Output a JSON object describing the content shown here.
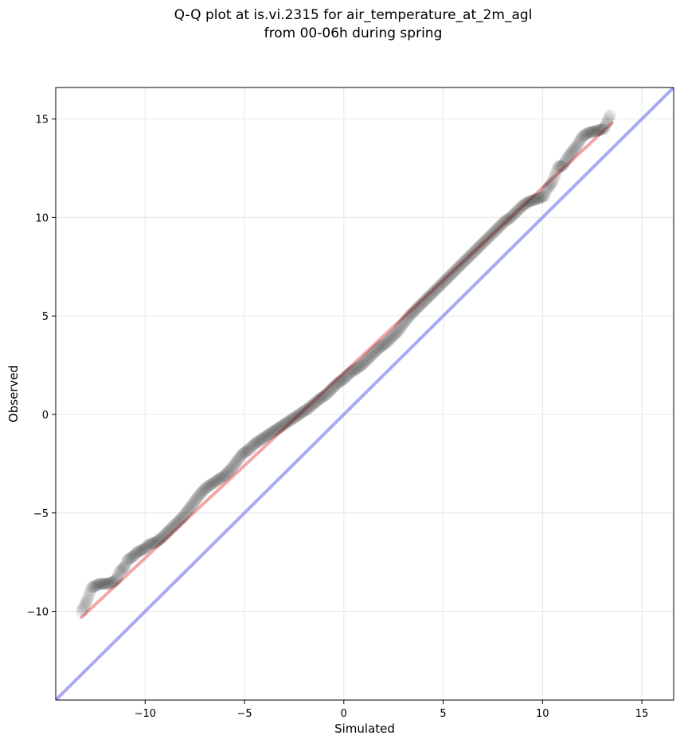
{
  "chart_data": {
    "type": "scatter",
    "title_lines": [
      "Q-Q plot at is.vi.2315 for air_temperature_at_2m_agl",
      "from 00-06h during spring"
    ],
    "xlabel": "Simulated",
    "ylabel": "Observed",
    "xlim": [
      -14.5,
      16.6
    ],
    "ylim": [
      -14.5,
      16.6
    ],
    "xticks": [
      -10,
      -5,
      0,
      5,
      10,
      15
    ],
    "yticks": [
      -10,
      -5,
      0,
      5,
      10,
      15
    ],
    "xtick_labels": [
      "−10",
      "−5",
      "0",
      "5",
      "10",
      "15"
    ],
    "ytick_labels": [
      "−10",
      "−5",
      "0",
      "5",
      "10",
      "15"
    ],
    "grid": true,
    "colors": {
      "points": "#1a1a1a",
      "fit_line": "#f08080",
      "identity_line": "#8c8cf0",
      "grid": "#e6e6e6"
    },
    "identity_line": {
      "from": [
        -14.5,
        -14.5
      ],
      "to": [
        16.6,
        16.6
      ]
    },
    "fit_line": {
      "from": [
        -13.2,
        -10.3
      ],
      "to": [
        13.5,
        14.8
      ]
    },
    "series": [
      {
        "x": [
          -13.2,
          -12.9,
          -12.8,
          -12.7,
          -12.6,
          -12.5,
          -12.3,
          -12.1,
          -11.9,
          -11.6,
          -11.4,
          -11.3,
          -11.2,
          -11.0,
          -10.9,
          -10.6,
          -10.4,
          -10.2,
          -10.0,
          -9.8,
          -9.5,
          -9.2,
          -9.0,
          -8.7,
          -8.4,
          -8.1,
          -7.8,
          -7.5,
          -7.2,
          -6.9,
          -6.6,
          -6.3,
          -6.0,
          -5.7,
          -5.4,
          -5.1,
          -4.8,
          -4.5,
          -4.2,
          -3.9,
          -3.6,
          -3.3,
          -3.0,
          -2.7,
          -2.4,
          -2.1,
          -1.8,
          -1.5,
          -1.2,
          -0.9,
          -0.6,
          -0.3,
          0.0,
          0.3,
          0.6,
          0.9,
          1.2,
          1.5,
          1.8,
          2.1,
          2.4,
          2.7,
          3.0,
          3.3,
          3.6,
          3.9,
          4.2,
          4.5,
          4.8,
          5.1,
          5.4,
          5.7,
          6.0,
          6.3,
          6.6,
          6.9,
          7.2,
          7.5,
          7.8,
          8.1,
          8.4,
          8.7,
          9.0,
          9.3,
          9.6,
          9.9,
          10.1,
          10.2,
          10.5,
          10.8,
          11.0,
          11.3,
          11.7,
          12.0,
          12.3,
          13.1,
          13.4
        ],
        "y": [
          -10.0,
          -9.4,
          -9.1,
          -8.8,
          -8.75,
          -8.7,
          -8.6,
          -8.6,
          -8.6,
          -8.5,
          -8.3,
          -8.0,
          -7.9,
          -7.7,
          -7.4,
          -7.2,
          -7.0,
          -6.9,
          -6.8,
          -6.6,
          -6.5,
          -6.3,
          -6.1,
          -5.8,
          -5.5,
          -5.2,
          -4.8,
          -4.4,
          -4.0,
          -3.7,
          -3.5,
          -3.3,
          -3.1,
          -2.8,
          -2.4,
          -2.0,
          -1.8,
          -1.5,
          -1.3,
          -1.1,
          -0.9,
          -0.7,
          -0.5,
          -0.3,
          -0.1,
          0.1,
          0.3,
          0.55,
          0.8,
          1.0,
          1.3,
          1.6,
          1.8,
          2.1,
          2.3,
          2.5,
          2.8,
          3.1,
          3.4,
          3.6,
          3.9,
          4.2,
          4.6,
          5.0,
          5.3,
          5.6,
          5.9,
          6.2,
          6.5,
          6.8,
          7.1,
          7.4,
          7.7,
          8.0,
          8.3,
          8.6,
          8.9,
          9.2,
          9.5,
          9.8,
          10.0,
          10.3,
          10.6,
          10.8,
          10.9,
          11.0,
          11.1,
          11.4,
          11.8,
          12.6,
          12.6,
          13.1,
          13.6,
          14.1,
          14.3,
          14.5,
          15.2
        ]
      }
    ]
  }
}
